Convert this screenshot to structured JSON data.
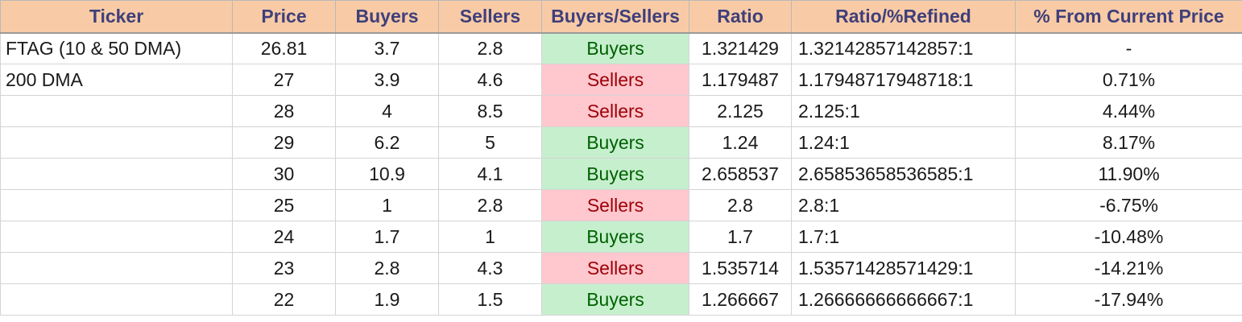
{
  "table": {
    "headers": [
      "Ticker",
      "Price",
      "Buyers",
      "Sellers",
      "Buyers/Sellers",
      "Ratio",
      "Ratio/%Refined",
      "% From Current Price"
    ],
    "rows": [
      {
        "ticker": "FTAG (10 & 50 DMA)",
        "price": "26.81",
        "buyers": "3.7",
        "sellers": "2.8",
        "sentiment": "Buyers",
        "ratio": "1.321429",
        "refined": "1.32142857142857:1",
        "pct": "-"
      },
      {
        "ticker": "200 DMA",
        "price": "27",
        "buyers": "3.9",
        "sellers": "4.6",
        "sentiment": "Sellers",
        "ratio": "1.179487",
        "refined": "1.17948717948718:1",
        "pct": "0.71%"
      },
      {
        "ticker": "",
        "price": "28",
        "buyers": "4",
        "sellers": "8.5",
        "sentiment": "Sellers",
        "ratio": "2.125",
        "refined": "2.125:1",
        "pct": "4.44%"
      },
      {
        "ticker": "",
        "price": "29",
        "buyers": "6.2",
        "sellers": "5",
        "sentiment": "Buyers",
        "ratio": "1.24",
        "refined": "1.24:1",
        "pct": "8.17%"
      },
      {
        "ticker": "",
        "price": "30",
        "buyers": "10.9",
        "sellers": "4.1",
        "sentiment": "Buyers",
        "ratio": "2.658537",
        "refined": "2.65853658536585:1",
        "pct": "11.90%"
      },
      {
        "ticker": "",
        "price": "25",
        "buyers": "1",
        "sellers": "2.8",
        "sentiment": "Sellers",
        "ratio": "2.8",
        "refined": "2.8:1",
        "pct": "-6.75%"
      },
      {
        "ticker": "",
        "price": "24",
        "buyers": "1.7",
        "sellers": "1",
        "sentiment": "Buyers",
        "ratio": "1.7",
        "refined": "1.7:1",
        "pct": "-10.48%"
      },
      {
        "ticker": "",
        "price": "23",
        "buyers": "2.8",
        "sellers": "4.3",
        "sentiment": "Sellers",
        "ratio": "1.535714",
        "refined": "1.53571428571429:1",
        "pct": "-14.21%"
      },
      {
        "ticker": "",
        "price": "22",
        "buyers": "1.9",
        "sellers": "1.5",
        "sentiment": "Buyers",
        "ratio": "1.266667",
        "refined": "1.26666666666667:1",
        "pct": "-17.94%"
      }
    ]
  },
  "colors": {
    "header_bg": "#f8cba6",
    "header_text": "#3f3f7a",
    "buyers_bg": "#c6efce",
    "buyers_text": "#006100",
    "sellers_bg": "#ffc7ce",
    "sellers_text": "#9c0006"
  }
}
